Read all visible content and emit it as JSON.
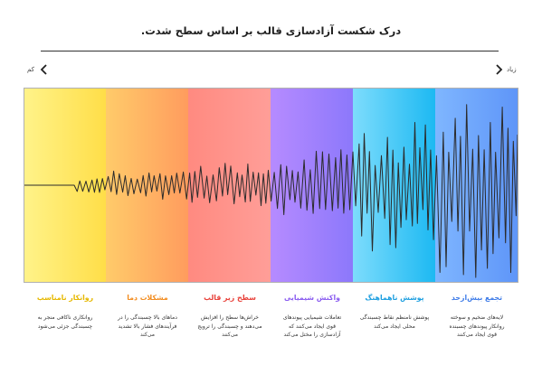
{
  "title": "درک شکست آزادسازی قالب بر اساس سطح شدت.",
  "scale": {
    "low_label": "کم",
    "high_label": "زیاد"
  },
  "colors": {
    "band_1": [
      "#fff38a",
      "#ffde48"
    ],
    "band_2": [
      "#ffcb6a",
      "#ff9c5e"
    ],
    "band_3": [
      "#ff8a80",
      "#ff9e98"
    ],
    "band_4": [
      "#b68bff",
      "#8c78fb"
    ],
    "band_5": [
      "#7ddcfc",
      "#1db9f2"
    ],
    "band_6": [
      "#7fb6ff",
      "#5e95f8"
    ],
    "wave": "#2b2b2b"
  },
  "categories": [
    {
      "title": "روانکار نامناسب",
      "desc": [
        "روانکاری ناکافی منجر به",
        "چسبندگی جزئی می‌شود"
      ],
      "color": "#e6b800"
    },
    {
      "title": "مشکلات دما",
      "desc": [
        "دماهای بالا چسبندگی را در",
        "فرآیندهای فشار بالا تشدید",
        "می‌کند"
      ],
      "color": "#f28c1f"
    },
    {
      "title": "سطح زیر قالب",
      "desc": [
        "خراش‌ها سطح را افزایش",
        "می‌دهند و چسبندگی را ترویج",
        "می‌کنند"
      ],
      "color": "#e8413a"
    },
    {
      "title": "واکنش شیمیایی",
      "desc": [
        "تعاملات شیمیایی پیوندهای",
        "قوی ایجاد می‌کنند که",
        "آزادسازی را مختل می‌کند"
      ],
      "color": "#8a5cf0"
    },
    {
      "title": "پوشش ناهماهنگ",
      "desc": [
        "پوشش نامنظم نقاط چسبندگی",
        "محلی ایجاد می‌کند"
      ],
      "color": "#1e9fe0"
    },
    {
      "title": "تجمع بیش‌ازحد",
      "desc": [
        "لایه‌های ضخیم و سوخته",
        "روانکار پیوندهای چسبنده",
        "قوی ایجاد می‌کنند"
      ],
      "color": "#3f7ce8"
    }
  ]
}
